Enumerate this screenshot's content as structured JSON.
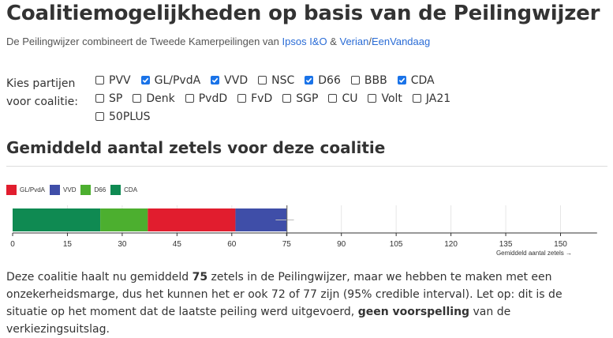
{
  "page_title": "Coalitiemogelijkheden op basis van de Peilingwijzer",
  "subtitle": {
    "prefix": "De Peilingwijzer combineert de Tweede Kamerpeilingen van ",
    "link1": "Ipsos I&O",
    "sep1": " & ",
    "link2": "Verian",
    "sep2": "/",
    "link3": "EenVandaag"
  },
  "party_select": {
    "label_line1": "Kies partijen",
    "label_line2": "voor coalitie:",
    "parties": [
      {
        "name": "PVV",
        "checked": false
      },
      {
        "name": "GL/PvdA",
        "checked": true
      },
      {
        "name": "VVD",
        "checked": true
      },
      {
        "name": "NSC",
        "checked": false
      },
      {
        "name": "D66",
        "checked": true
      },
      {
        "name": "BBB",
        "checked": false
      },
      {
        "name": "CDA",
        "checked": true
      },
      {
        "name": "SP",
        "checked": false
      },
      {
        "name": "Denk",
        "checked": false
      },
      {
        "name": "PvdD",
        "checked": false
      },
      {
        "name": "FvD",
        "checked": false
      },
      {
        "name": "SGP",
        "checked": false
      },
      {
        "name": "CU",
        "checked": false
      },
      {
        "name": "Volt",
        "checked": false
      },
      {
        "name": "JA21",
        "checked": false
      },
      {
        "name": "50PLUS",
        "checked": false
      }
    ]
  },
  "section_heading": "Gemiddeld aantal zetels voor deze coalitie",
  "chart_data": {
    "type": "bar",
    "orientation": "horizontal-stacked",
    "xlabel": "Gemiddeld aantal zetels →",
    "xlim": [
      0,
      160
    ],
    "ticks": [
      0,
      15,
      30,
      45,
      60,
      75,
      90,
      105,
      120,
      135,
      150
    ],
    "threshold": 75,
    "series": [
      {
        "name": "GL/PvdA",
        "value": 24,
        "color": "#e11d2e"
      },
      {
        "name": "VVD",
        "value": 14,
        "color": "#3f4ea8"
      },
      {
        "name": "D66",
        "value": 13,
        "color": "#4caf2f"
      },
      {
        "name": "CDA",
        "value": 24,
        "color": "#0f8a52"
      }
    ],
    "stack_order": [
      "CDA",
      "D66",
      "GL/PvdA",
      "VVD"
    ],
    "interval": [
      72,
      77
    ]
  },
  "summary": {
    "t1": "Deze coalitie haalt nu gemiddeld ",
    "seats": "75",
    "t2": " zetels in de Peilingwijzer, maar we hebben te maken met een onzekerheidsmarge, dus het kunnen het er ook 72 of 77 zijn (95% credible interval). Let op: dit is de situatie op het moment dat de laatste peiling werd uitgevoerd, ",
    "bold2": "geen voorspelling",
    "t3": " van de verkiezingsuitslag."
  }
}
